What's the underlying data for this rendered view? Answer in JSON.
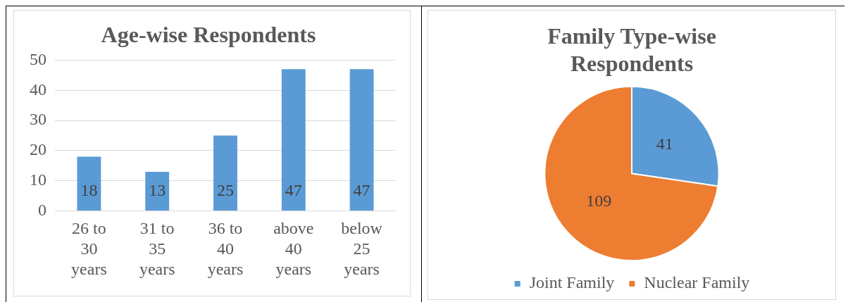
{
  "chart_data": [
    {
      "type": "bar",
      "title": "Age-wise Respondents",
      "categories": [
        "26 to 30 years",
        "31 to 35 years",
        "36 to 40 years",
        "above 40 years",
        "below 25 years"
      ],
      "values": [
        18,
        13,
        25,
        47,
        47
      ],
      "color": "#5b9bd5",
      "ylim": [
        0,
        50
      ],
      "yticks": [
        0,
        10,
        20,
        30,
        40,
        50
      ],
      "grid": "y",
      "data_labels": true,
      "legend": false
    },
    {
      "type": "pie",
      "title": "Family Type-wise Respondents",
      "categories": [
        "Joint Family",
        "Nuclear Family"
      ],
      "values": [
        41,
        109
      ],
      "colors": [
        "#5b9bd5",
        "#ed7d31"
      ],
      "data_labels": true,
      "legend": "bottom"
    }
  ]
}
